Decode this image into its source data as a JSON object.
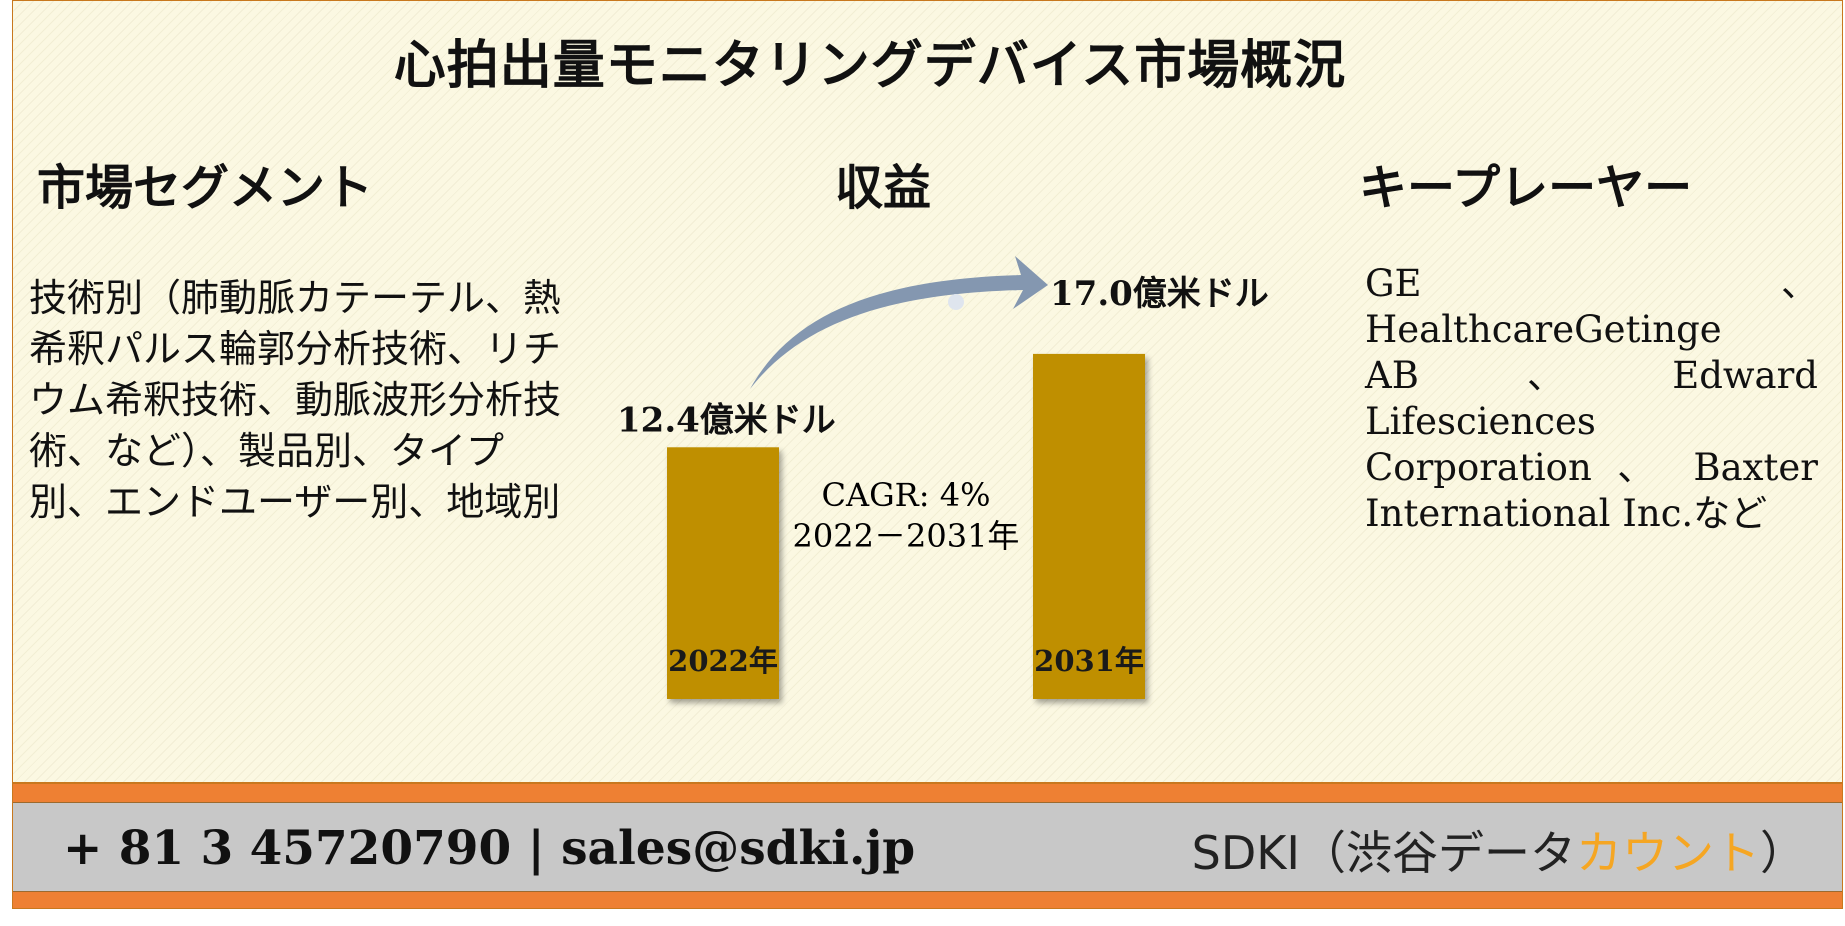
{
  "title": "心拍出量モニタリングデバイス市場概況",
  "segments": {
    "heading": "市場セグメント",
    "text": "技術別（肺動脈カテーテル、熱希釈パルス輪郭分析技術、リチウム希釈技術、動脈波形分析技術、など）、製品別、タイプ別、エンドユーザー別、地域別"
  },
  "revenue": {
    "heading": "収益",
    "cagr": "CAGR: 4%",
    "period": "2022－2031年"
  },
  "key_players": {
    "heading": "キープレーヤー",
    "text": "GE 、 HealthcareGetinge AB、Edward Lifesciences Corporation 、 Baxter International Inc.など"
  },
  "chart_data": {
    "type": "bar",
    "categories": [
      "2022年",
      "2031年"
    ],
    "values": [
      12.4,
      17.0
    ],
    "value_labels": [
      "12.4億米ドル",
      "17.0億米ドル"
    ],
    "unit": "億米ドル",
    "bar_color": "#bf8f00",
    "arrow_color": "#8497b0"
  },
  "footer": {
    "contact_phone": "+ 81 3 45720790",
    "contact_separator": "|",
    "contact_email": "sales@sdki.jp",
    "brand_prefix": "SDKI（渋谷データ",
    "brand_accent": "カウント",
    "brand_suffix": "）",
    "accent_color": "#f5a623"
  }
}
